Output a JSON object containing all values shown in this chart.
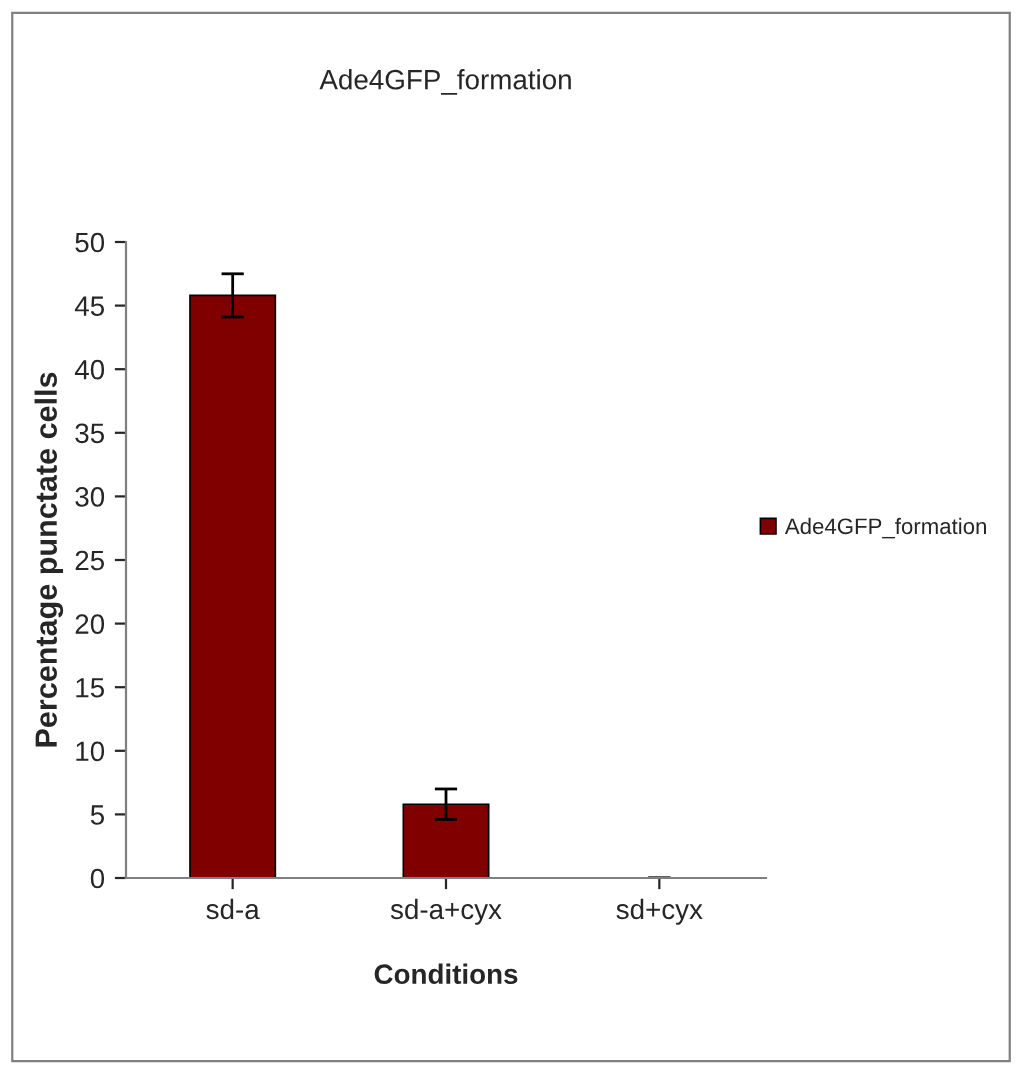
{
  "chart_data": {
    "type": "bar",
    "title": "Ade4GFP_formation",
    "xlabel": "Conditions",
    "ylabel": "Percentage punctate cells",
    "categories": [
      "sd-a",
      "sd-a+cyx",
      "sd+cyx"
    ],
    "series": [
      {
        "name": "Ade4GFP_formation",
        "color": "#800000",
        "values": [
          45.8,
          5.8,
          0
        ],
        "errors": [
          1.7,
          1.2,
          0
        ]
      }
    ],
    "ylim": [
      0,
      50
    ],
    "yticks": [
      0,
      5,
      10,
      15,
      20,
      25,
      30,
      35,
      40,
      45,
      50
    ],
    "grid": false,
    "legend": "right"
  }
}
